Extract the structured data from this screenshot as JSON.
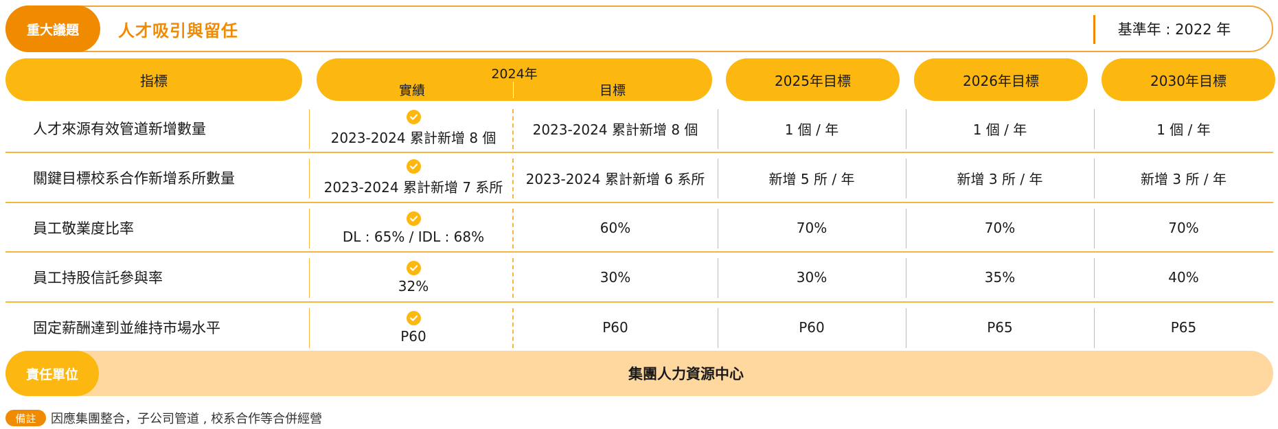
{
  "header": {
    "tag": "重大議題",
    "title": "人才吸引與留任",
    "base_year": "基準年 : 2022 年"
  },
  "columns": {
    "indicator": "指標",
    "y2024": "2024年",
    "actual": "實績",
    "target": "目標",
    "y2025": "2025年目標",
    "y2026": "2026年目標",
    "y2030": "2030年目標"
  },
  "rows": [
    {
      "indicator": "人才來源有效管道新增數量",
      "actual": "2023-2024 累計新增 8 個",
      "target": "2023-2024 累計新增 8 個",
      "y2025": "1 個 / 年",
      "y2026": "1 個 / 年",
      "y2030": "1 個 / 年"
    },
    {
      "indicator": "關鍵目標校系合作新增系所數量",
      "actual": "2023-2024 累計新增 7 系所",
      "target": "2023-2024 累計新增 6 系所",
      "y2025": "新增 5 所 / 年",
      "y2026": "新增 3 所 / 年",
      "y2030": "新增 3 所 / 年"
    },
    {
      "indicator": "員工敬業度比率",
      "actual": "DL : 65% / IDL : 68%",
      "target": "60%",
      "y2025": "70%",
      "y2026": "70%",
      "y2030": "70%"
    },
    {
      "indicator": "員工持股信託參與率",
      "actual": "32%",
      "target": "30%",
      "y2025": "30%",
      "y2026": "35%",
      "y2030": "40%"
    },
    {
      "indicator": "固定薪酬達到並維持市場水平",
      "actual": "P60",
      "target": "P60",
      "y2025": "P60",
      "y2026": "P65",
      "y2030": "P65"
    }
  ],
  "responsibility": {
    "label": "責任單位",
    "unit": "集團人力資源中心"
  },
  "note": {
    "label": "備註",
    "text": "因應集團整合，子公司管道 , 校系合作等合併經營"
  },
  "icons": {
    "achieved": "check-circle-icon"
  },
  "colors": {
    "orange": "#f08a00",
    "yellow": "#fcb711",
    "light": "#fed89e"
  }
}
